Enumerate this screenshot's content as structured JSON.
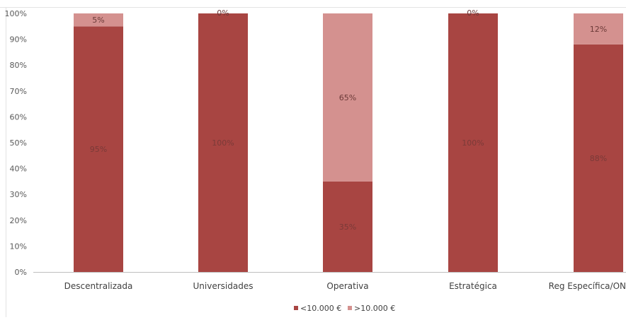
{
  "chart_data": {
    "type": "bar",
    "stacked": true,
    "percent": true,
    "categories": [
      "Descentralizada",
      "Universidades",
      "Operativa",
      "Estratégica",
      "Reg Específica/ON"
    ],
    "series": [
      {
        "name": "<10.000 €",
        "color": "#a84542",
        "values": [
          95,
          100,
          35,
          100,
          88
        ],
        "labels": [
          "95%",
          "100%",
          "35%",
          "100%",
          "88%"
        ]
      },
      {
        "name": ">10.000 €",
        "color": "#d4918f",
        "values": [
          5,
          0,
          65,
          0,
          12
        ],
        "labels": [
          "5%",
          "0%",
          "65%",
          "0%",
          "12%"
        ]
      }
    ],
    "ylim": [
      0,
      100
    ],
    "yticks": [
      "0%",
      "10%",
      "20%",
      "30%",
      "40%",
      "50%",
      "60%",
      "70%",
      "80%",
      "90%",
      "100%"
    ],
    "grid": false,
    "legend_position": "bottom",
    "title": "",
    "xlabel": "",
    "ylabel": ""
  }
}
